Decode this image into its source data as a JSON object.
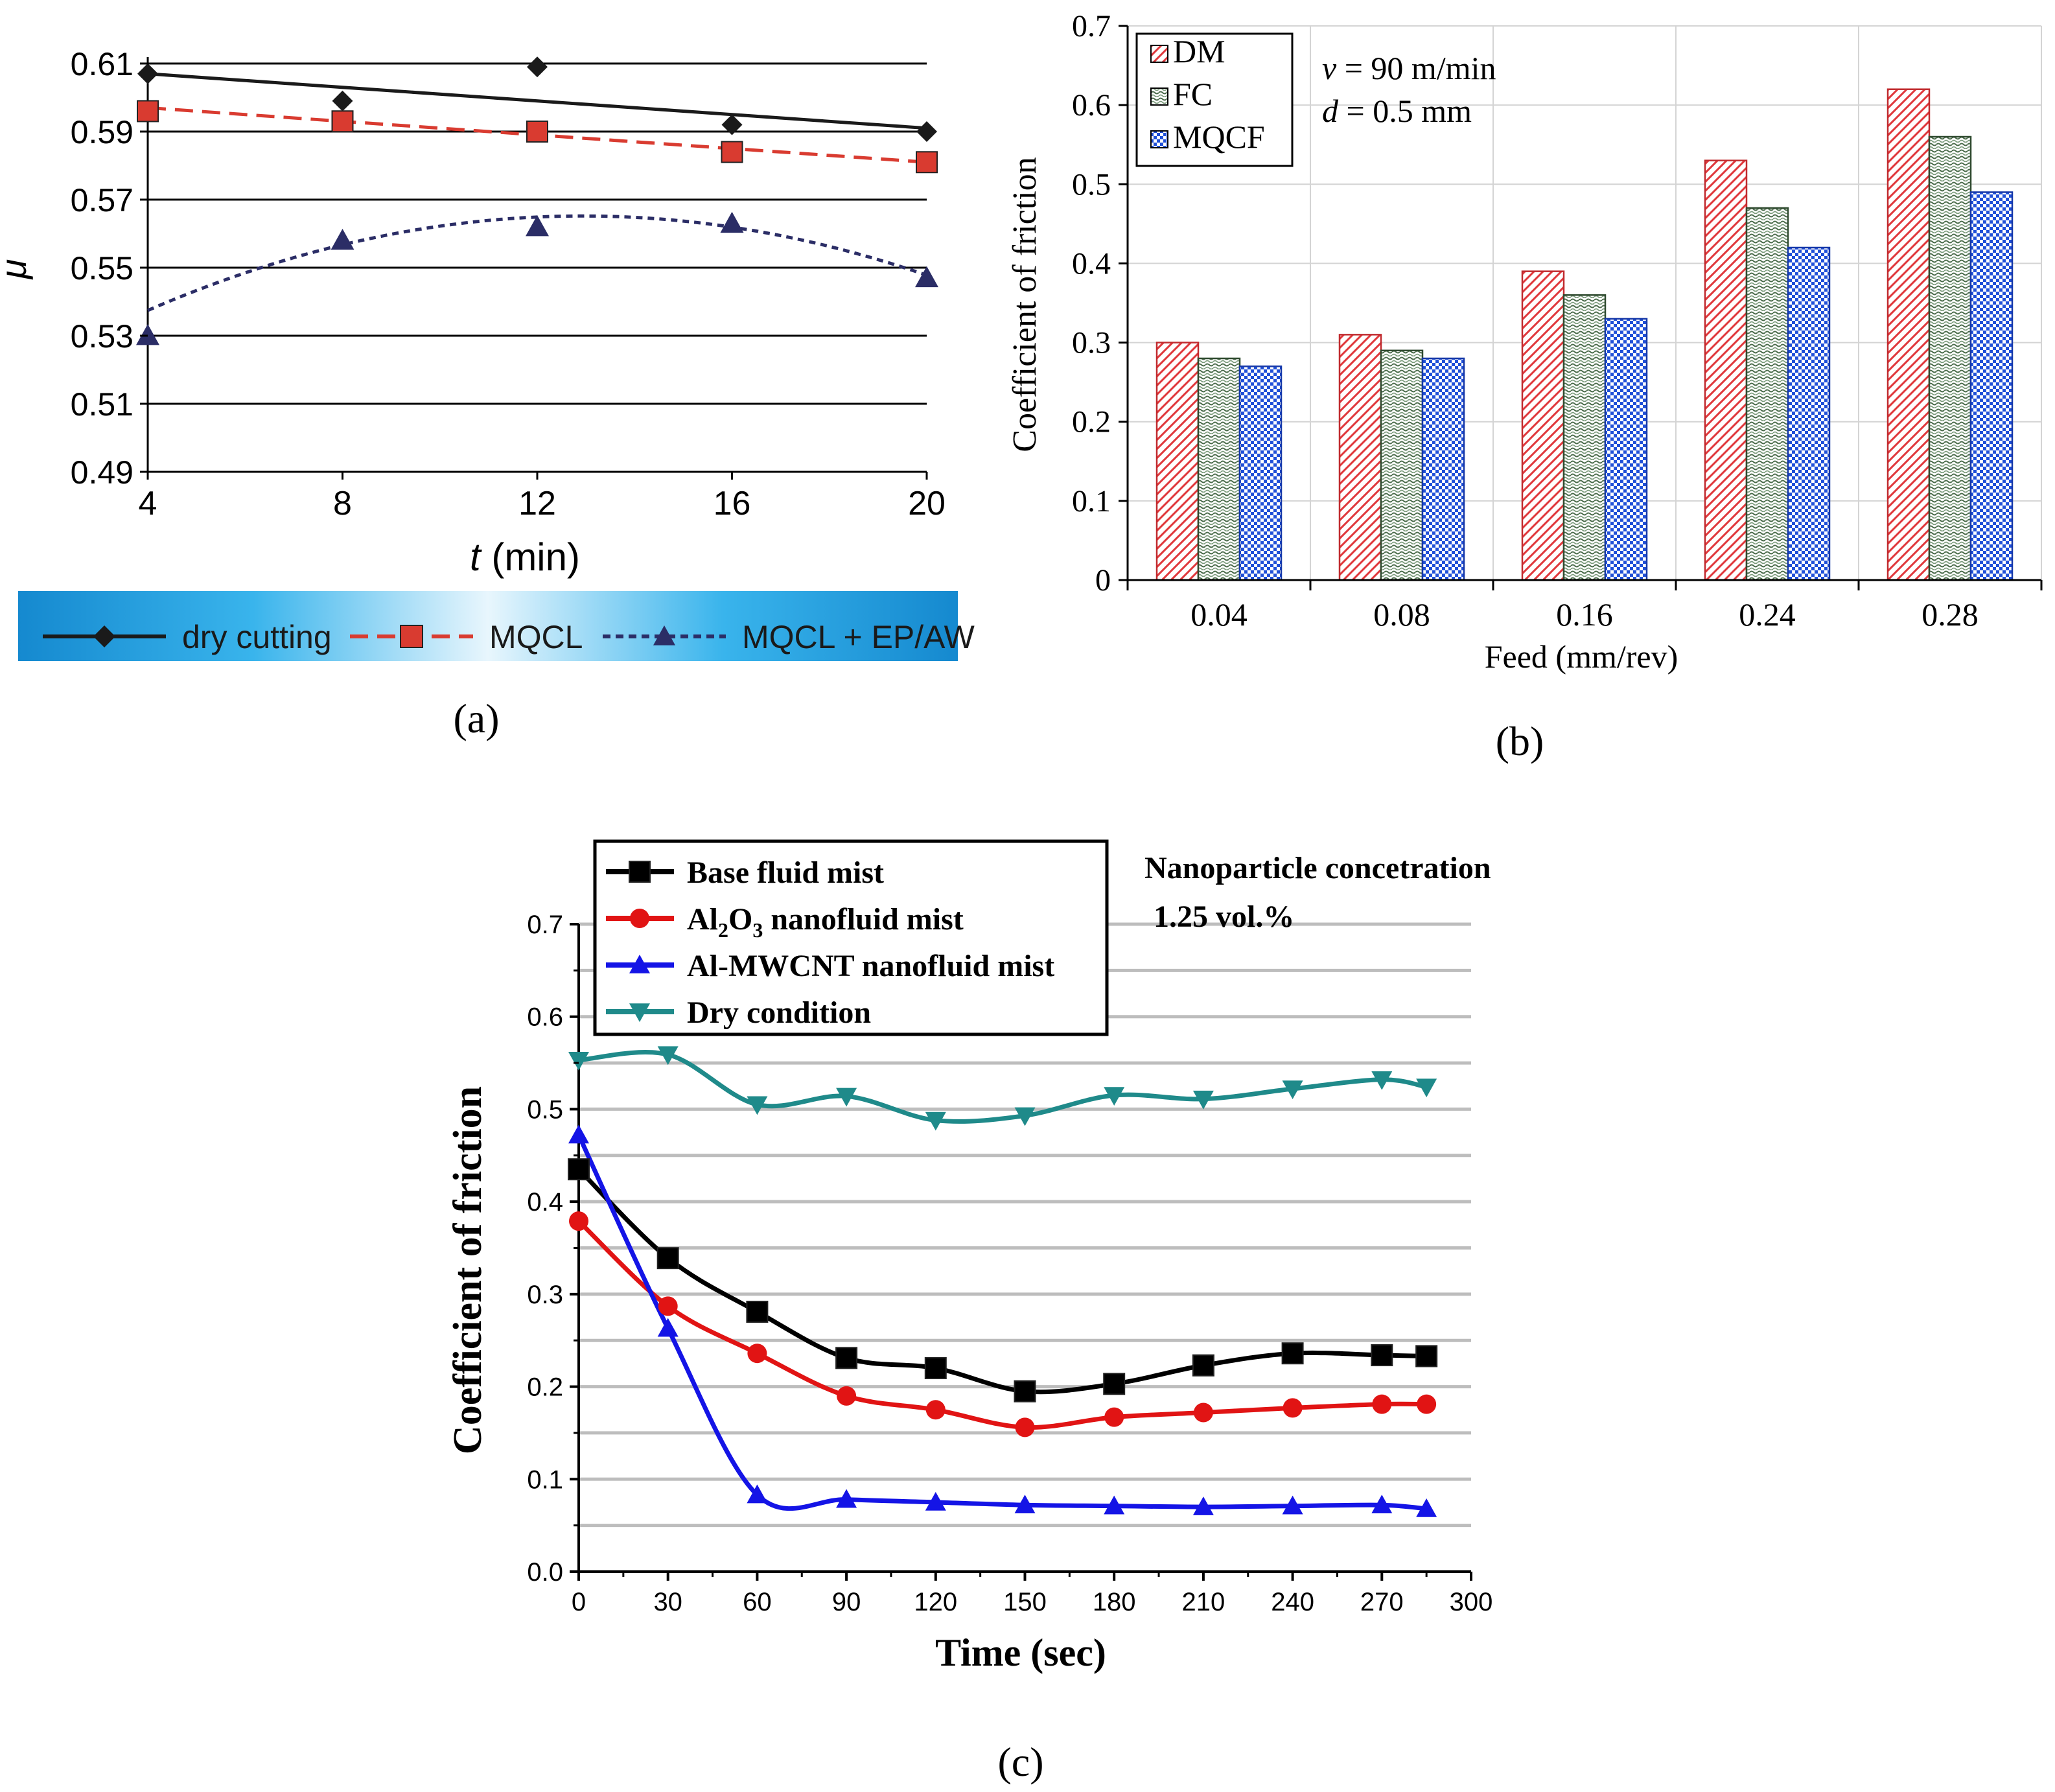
{
  "chart_data": [
    {
      "id": "a",
      "type": "line",
      "panel_label": "(a)",
      "ylabel": "μ",
      "xlabel_italic": "t",
      "xlabel_unit": " (min)",
      "xlim": [
        4,
        20
      ],
      "ylim": [
        0.49,
        0.61
      ],
      "x_ticks": [
        "4",
        "8",
        "12",
        "16",
        "20"
      ],
      "x_tick_values": [
        4,
        8,
        12,
        16,
        20
      ],
      "y_ticks": [
        "0.49",
        "0.51",
        "0.53",
        "0.55",
        "0.57",
        "0.59",
        "0.61"
      ],
      "y_tick_values": [
        0.49,
        0.51,
        0.53,
        0.55,
        0.57,
        0.59,
        0.61
      ],
      "grid": true,
      "series": [
        {
          "name": "dry cutting",
          "color": "#1a1a1a",
          "marker": "diamond",
          "dash": "solid",
          "x": [
            4,
            8,
            12,
            16,
            20
          ],
          "y": [
            0.607,
            0.599,
            0.609,
            0.592,
            0.59
          ],
          "trend": [
            [
              4,
              0.607
            ],
            [
              20,
              0.591
            ]
          ]
        },
        {
          "name": "MQCL",
          "color": "#d93b30",
          "marker": "square",
          "dash": "dashed",
          "x": [
            4,
            8,
            12,
            16,
            20
          ],
          "y": [
            0.596,
            0.593,
            0.59,
            0.584,
            0.581
          ],
          "trend": [
            [
              4,
              0.597
            ],
            [
              20,
              0.581
            ]
          ]
        },
        {
          "name": "MQCL + EP/AW",
          "color": "#2b2d66",
          "marker": "triangle",
          "dash": "dotted",
          "x": [
            4,
            8,
            12,
            16,
            20
          ],
          "y": [
            0.53,
            0.558,
            0.562,
            0.563,
            0.547
          ],
          "trend_quadratic": [
            -0.000348,
            0.009,
            0.507
          ]
        }
      ],
      "legend_bar_color": "#1ea0dc"
    },
    {
      "id": "b",
      "type": "bar",
      "panel_label": "(b)",
      "ylabel": "Coefficient of friction",
      "xlabel": "Feed (mm/rev)",
      "categories": [
        "0.04",
        "0.08",
        "0.16",
        "0.24",
        "0.28"
      ],
      "ylim": [
        0,
        0.7
      ],
      "y_ticks": [
        "0",
        "0.1",
        "0.2",
        "0.3",
        "0.4",
        "0.5",
        "0.6",
        "0.7"
      ],
      "y_tick_values": [
        0,
        0.1,
        0.2,
        0.3,
        0.4,
        0.5,
        0.6,
        0.7
      ],
      "annotations": [
        "v",
        " = 90 m/min",
        "d",
        " = 0.5 mm"
      ],
      "series": [
        {
          "name": "DM",
          "color": "#e0383c",
          "pattern": "diagonal",
          "values": [
            0.3,
            0.31,
            0.39,
            0.53,
            0.62
          ]
        },
        {
          "name": "FC",
          "color": "#4a6b4a",
          "pattern": "wave",
          "values": [
            0.28,
            0.29,
            0.36,
            0.47,
            0.56
          ]
        },
        {
          "name": "MQCF",
          "color": "#2050d8",
          "pattern": "checker",
          "values": [
            0.27,
            0.28,
            0.33,
            0.42,
            0.49
          ]
        }
      ]
    },
    {
      "id": "c",
      "type": "line",
      "panel_label": "(c)",
      "ylabel": "Coefficient of friction",
      "xlabel": "Time (sec)",
      "xlim": [
        0,
        300
      ],
      "ylim": [
        0,
        0.7
      ],
      "x_ticks": [
        "0",
        "30",
        "60",
        "90",
        "120",
        "150",
        "180",
        "210",
        "240",
        "270",
        "300"
      ],
      "x_tick_values": [
        0,
        30,
        60,
        90,
        120,
        150,
        180,
        210,
        240,
        270,
        300
      ],
      "y_ticks": [
        "0.0",
        "0.1",
        "0.2",
        "0.3",
        "0.4",
        "0.5",
        "0.6",
        "0.7"
      ],
      "y_tick_values": [
        0,
        0.1,
        0.2,
        0.3,
        0.4,
        0.5,
        0.6,
        0.7
      ],
      "annotation_title": "Nanoparticle concetration",
      "annotation_value": "1.25 vol.%",
      "grid": true,
      "series": [
        {
          "name": "Base fluid mist",
          "legend_parts": [
            "Base fluid mist"
          ],
          "color": "#000000",
          "marker": "square",
          "x": [
            0,
            30,
            60,
            90,
            120,
            150,
            180,
            210,
            240,
            270,
            285
          ],
          "y": [
            0.435,
            0.339,
            0.281,
            0.231,
            0.22,
            0.195,
            0.203,
            0.223,
            0.236,
            0.234,
            0.233
          ]
        },
        {
          "name": "Al2O3 nanofluid mist",
          "legend_parts": [
            "Al",
            "2",
            "O",
            "3",
            " nanofluid mist"
          ],
          "color": "#e11414",
          "marker": "circle",
          "x": [
            0,
            30,
            60,
            90,
            120,
            150,
            180,
            210,
            240,
            270,
            285
          ],
          "y": [
            0.379,
            0.287,
            0.236,
            0.19,
            0.175,
            0.156,
            0.167,
            0.172,
            0.177,
            0.181,
            0.181
          ]
        },
        {
          "name": "Al-MWCNT nanofluid mist",
          "legend_parts": [
            "Al-MWCNT nanofluid mist"
          ],
          "color": "#1414e6",
          "marker": "triangle",
          "x": [
            0,
            30,
            60,
            90,
            120,
            150,
            180,
            210,
            240,
            270,
            285
          ],
          "y": [
            0.472,
            0.263,
            0.083,
            0.078,
            0.075,
            0.072,
            0.071,
            0.07,
            0.071,
            0.072,
            0.068
          ]
        },
        {
          "name": "Dry condition",
          "legend_parts": [
            "Dry condition"
          ],
          "color": "#1f8a8a",
          "marker": "triangle-down",
          "x": [
            0,
            30,
            60,
            90,
            120,
            150,
            180,
            210,
            240,
            270,
            285
          ],
          "y": [
            0.553,
            0.559,
            0.505,
            0.514,
            0.488,
            0.493,
            0.515,
            0.511,
            0.522,
            0.532,
            0.524
          ]
        }
      ]
    }
  ]
}
